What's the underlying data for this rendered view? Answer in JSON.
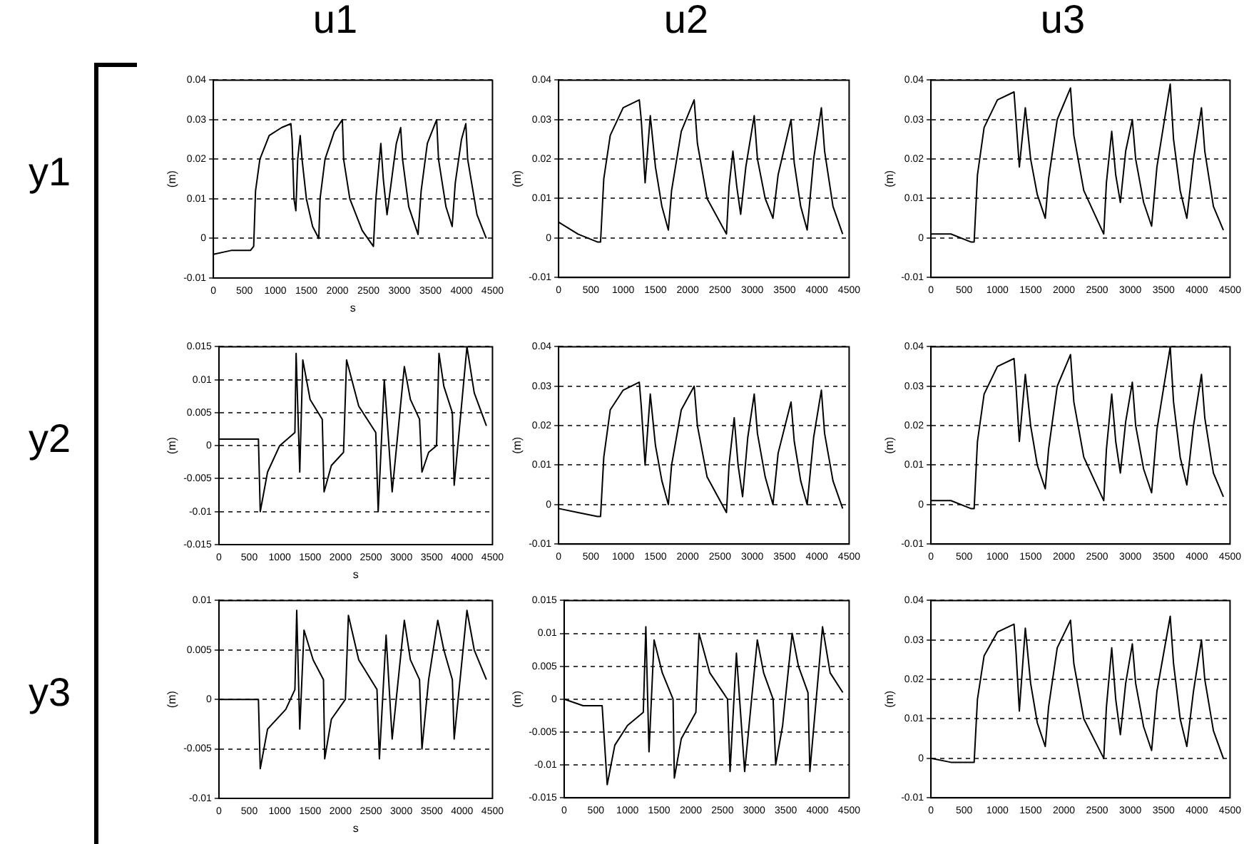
{
  "chart_data": [
    {
      "type": "line",
      "title": "u1",
      "ylabel": "(m)",
      "xlabel": "s",
      "annotations": [
        "y1"
      ],
      "xlim": [
        0,
        4500
      ],
      "xticks": [
        0,
        500,
        1000,
        1500,
        2000,
        2500,
        3000,
        3500,
        4000,
        4500
      ],
      "ylim": [
        -0.01,
        0.04
      ],
      "yticks": [
        -0.01,
        0,
        0.01,
        0.02,
        0.03,
        0.04
      ],
      "grid": "y",
      "line_style": "solid",
      "series": [
        {
          "color": "#000000",
          "x": [
            0,
            300,
            600,
            650,
            680,
            750,
            900,
            1100,
            1250,
            1270,
            1300,
            1330,
            1360,
            1400,
            1430,
            1500,
            1600,
            1700,
            1720,
            1800,
            1950,
            2080,
            2100,
            2200,
            2400,
            2580,
            2620,
            2700,
            2740,
            2800,
            2850,
            2950,
            3020,
            3050,
            3150,
            3300,
            3350,
            3450,
            3600,
            3630,
            3750,
            3850,
            3900,
            4000,
            4070,
            4100,
            4250,
            4400
          ],
          "values": [
            -0.004,
            -0.003,
            -0.003,
            -0.002,
            0.012,
            0.02,
            0.026,
            0.028,
            0.029,
            0.025,
            0.01,
            0.007,
            0.02,
            0.026,
            0.02,
            0.01,
            0.003,
            0,
            0.01,
            0.02,
            0.027,
            0.03,
            0.02,
            0.01,
            0.002,
            -0.002,
            0.01,
            0.024,
            0.015,
            0.006,
            0.012,
            0.024,
            0.028,
            0.02,
            0.008,
            0.001,
            0.012,
            0.024,
            0.03,
            0.02,
            0.008,
            0.003,
            0.014,
            0.025,
            0.029,
            0.02,
            0.006,
            0
          ]
        }
      ]
    },
    {
      "type": "line",
      "title": "u2",
      "ylabel": "(m)",
      "xlim": [
        0,
        4500
      ],
      "xticks": [
        0,
        500,
        1000,
        1500,
        2000,
        2500,
        3000,
        3500,
        4000,
        4500
      ],
      "ylim": [
        -0.01,
        0.04
      ],
      "yticks": [
        -0.01,
        0,
        0.01,
        0.02,
        0.03,
        0.04
      ],
      "grid": "y",
      "line_style": "solid",
      "series": [
        {
          "color": "#000000",
          "x": [
            0,
            300,
            600,
            650,
            700,
            800,
            1000,
            1250,
            1280,
            1340,
            1420,
            1500,
            1600,
            1700,
            1750,
            1900,
            2100,
            2150,
            2300,
            2600,
            2640,
            2700,
            2760,
            2820,
            2900,
            3030,
            3080,
            3200,
            3320,
            3400,
            3600,
            3650,
            3750,
            3850,
            3950,
            4070,
            4120,
            4250,
            4400
          ],
          "values": [
            0.004,
            0.001,
            -0.001,
            -0.001,
            0.015,
            0.026,
            0.033,
            0.035,
            0.03,
            0.014,
            0.031,
            0.018,
            0.008,
            0.002,
            0.012,
            0.027,
            0.035,
            0.024,
            0.01,
            0.001,
            0.013,
            0.022,
            0.013,
            0.006,
            0.018,
            0.031,
            0.02,
            0.01,
            0.005,
            0.016,
            0.03,
            0.019,
            0.008,
            0.002,
            0.02,
            0.033,
            0.022,
            0.008,
            0.001
          ]
        }
      ]
    },
    {
      "type": "line",
      "title": "u3",
      "ylabel": "(m)",
      "xlim": [
        0,
        4500
      ],
      "xticks": [
        0,
        500,
        1000,
        1500,
        2000,
        2500,
        3000,
        3500,
        4000,
        4500
      ],
      "ylim": [
        -0.01,
        0.04
      ],
      "yticks": [
        -0.01,
        0,
        0.01,
        0.02,
        0.03,
        0.04
      ],
      "grid": "y",
      "line_style": "solid",
      "series": [
        {
          "color": "#000000",
          "x": [
            0,
            300,
            600,
            650,
            700,
            800,
            1000,
            1250,
            1280,
            1330,
            1420,
            1500,
            1600,
            1720,
            1770,
            1900,
            2100,
            2150,
            2300,
            2600,
            2640,
            2720,
            2780,
            2850,
            2930,
            3030,
            3080,
            3200,
            3320,
            3400,
            3600,
            3650,
            3750,
            3850,
            3950,
            4070,
            4120,
            4250,
            4400
          ],
          "values": [
            0.001,
            0.001,
            -0.001,
            -0.001,
            0.016,
            0.028,
            0.035,
            0.037,
            0.03,
            0.018,
            0.033,
            0.02,
            0.011,
            0.005,
            0.015,
            0.03,
            0.038,
            0.026,
            0.012,
            0.001,
            0.014,
            0.027,
            0.016,
            0.009,
            0.022,
            0.03,
            0.02,
            0.009,
            0.003,
            0.018,
            0.039,
            0.025,
            0.012,
            0.005,
            0.02,
            0.033,
            0.022,
            0.008,
            0.002
          ]
        }
      ]
    },
    {
      "type": "line",
      "ylabel": "(m)",
      "xlabel": "s",
      "annotations": [
        "y2"
      ],
      "xlim": [
        0,
        4500
      ],
      "xticks": [
        0,
        500,
        1000,
        1500,
        2000,
        2500,
        3000,
        3500,
        4000,
        4500
      ],
      "ylim": [
        -0.015,
        0.015
      ],
      "yticks": [
        -0.015,
        -0.01,
        -0.005,
        0,
        0.005,
        0.01,
        0.015
      ],
      "grid": "y",
      "line_style": "solid",
      "series": [
        {
          "color": "#000000",
          "x": [
            0,
            300,
            650,
            680,
            800,
            1000,
            1250,
            1270,
            1330,
            1380,
            1500,
            1700,
            1730,
            1850,
            2050,
            2100,
            2300,
            2580,
            2620,
            2720,
            2850,
            3050,
            3150,
            3300,
            3340,
            3450,
            3580,
            3620,
            3700,
            3840,
            3870,
            4080,
            4200,
            4400
          ],
          "values": [
            0.001,
            0.001,
            0.001,
            -0.01,
            -0.004,
            0,
            0.002,
            0.014,
            -0.004,
            0.013,
            0.007,
            0.004,
            -0.007,
            -0.003,
            -0.001,
            0.013,
            0.006,
            0.002,
            -0.01,
            0.01,
            -0.007,
            0.012,
            0.007,
            0.004,
            -0.004,
            -0.001,
            0,
            0.014,
            0.009,
            0.005,
            -0.006,
            0.015,
            0.008,
            0.003
          ]
        }
      ]
    },
    {
      "type": "line",
      "ylabel": "(m)",
      "xlim": [
        0,
        4500
      ],
      "xticks": [
        0,
        500,
        1000,
        1500,
        2000,
        2500,
        3000,
        3500,
        4000,
        4500
      ],
      "ylim": [
        -0.01,
        0.04
      ],
      "yticks": [
        -0.01,
        0,
        0.01,
        0.02,
        0.03,
        0.04
      ],
      "grid": "y",
      "line_style": "solid",
      "series": [
        {
          "color": "#000000",
          "x": [
            0,
            300,
            600,
            650,
            700,
            800,
            1000,
            1250,
            1280,
            1340,
            1420,
            1500,
            1600,
            1700,
            1750,
            1900,
            2100,
            2150,
            2300,
            2600,
            2640,
            2720,
            2780,
            2850,
            2930,
            3030,
            3080,
            3200,
            3320,
            3400,
            3600,
            3650,
            3750,
            3850,
            3950,
            4070,
            4120,
            4250,
            4400
          ],
          "values": [
            -0.001,
            -0.002,
            -0.003,
            -0.003,
            0.012,
            0.024,
            0.029,
            0.031,
            0.025,
            0.01,
            0.028,
            0.015,
            0.006,
            0,
            0.01,
            0.024,
            0.03,
            0.02,
            0.007,
            -0.002,
            0.01,
            0.022,
            0.01,
            0.002,
            0.017,
            0.028,
            0.018,
            0.007,
            0,
            0.013,
            0.026,
            0.016,
            0.006,
            0,
            0.017,
            0.029,
            0.018,
            0.006,
            -0.001
          ]
        }
      ]
    },
    {
      "type": "line",
      "ylabel": "(m)",
      "xlim": [
        0,
        4500
      ],
      "xticks": [
        0,
        500,
        1000,
        1500,
        2000,
        2500,
        3000,
        3500,
        4000,
        4500
      ],
      "ylim": [
        -0.01,
        0.04
      ],
      "yticks": [
        -0.01,
        0,
        0.01,
        0.02,
        0.03,
        0.04
      ],
      "grid": "y",
      "line_style": "solid",
      "series": [
        {
          "color": "#000000",
          "x": [
            0,
            300,
            600,
            650,
            700,
            800,
            1000,
            1250,
            1280,
            1330,
            1420,
            1500,
            1600,
            1720,
            1770,
            1900,
            2100,
            2150,
            2300,
            2600,
            2640,
            2720,
            2780,
            2850,
            2930,
            3030,
            3080,
            3200,
            3320,
            3400,
            3600,
            3650,
            3750,
            3850,
            3950,
            4070,
            4120,
            4250,
            4400
          ],
          "values": [
            0.001,
            0.001,
            -0.001,
            -0.001,
            0.016,
            0.028,
            0.035,
            0.037,
            0.03,
            0.016,
            0.033,
            0.02,
            0.01,
            0.004,
            0.014,
            0.03,
            0.038,
            0.026,
            0.012,
            0.001,
            0.014,
            0.028,
            0.016,
            0.008,
            0.021,
            0.031,
            0.02,
            0.009,
            0.003,
            0.019,
            0.04,
            0.026,
            0.012,
            0.005,
            0.02,
            0.033,
            0.022,
            0.008,
            0.002
          ]
        }
      ]
    },
    {
      "type": "line",
      "ylabel": "(m)",
      "xlabel": "s",
      "annotations": [
        "y3"
      ],
      "xlim": [
        0,
        4500
      ],
      "xticks": [
        0,
        500,
        1000,
        1500,
        2000,
        2500,
        3000,
        3500,
        4000,
        4500
      ],
      "ylim": [
        -0.01,
        0.01
      ],
      "yticks": [
        -0.01,
        -0.005,
        0,
        0.005,
        0.01
      ],
      "grid": "y",
      "line_style": "solid",
      "series": [
        {
          "color": "#000000",
          "x": [
            0,
            300,
            650,
            680,
            800,
            1100,
            1250,
            1280,
            1330,
            1400,
            1550,
            1720,
            1740,
            1850,
            2080,
            2130,
            2300,
            2600,
            2640,
            2750,
            2850,
            3050,
            3150,
            3300,
            3340,
            3450,
            3600,
            3700,
            3840,
            3870,
            4080,
            4200,
            4400
          ],
          "values": [
            0,
            0,
            0,
            -0.007,
            -0.003,
            -0.001,
            0.001,
            0.009,
            -0.003,
            0.007,
            0.004,
            0.002,
            -0.006,
            -0.002,
            0,
            0.0085,
            0.004,
            0.001,
            -0.006,
            0.0065,
            -0.004,
            0.008,
            0.004,
            0.002,
            -0.005,
            0.002,
            0.008,
            0.005,
            0.002,
            -0.004,
            0.009,
            0.005,
            0.002
          ]
        }
      ]
    },
    {
      "type": "line",
      "ylabel": "(m)",
      "xlim": [
        0,
        4500
      ],
      "xticks": [
        0,
        500,
        1000,
        1500,
        2000,
        2500,
        3000,
        3500,
        4000,
        4500
      ],
      "ylim": [
        -0.015,
        0.015
      ],
      "yticks": [
        -0.015,
        -0.01,
        -0.005,
        0,
        0.005,
        0.01,
        0.015
      ],
      "grid": "y",
      "line_style": "solid",
      "series": [
        {
          "color": "#000000",
          "x": [
            0,
            300,
            600,
            680,
            800,
            1000,
            1250,
            1290,
            1340,
            1420,
            1550,
            1720,
            1740,
            1850,
            2080,
            2130,
            2300,
            2580,
            2620,
            2720,
            2850,
            3050,
            3150,
            3300,
            3340,
            3450,
            3600,
            3700,
            3850,
            3880,
            4080,
            4200,
            4400
          ],
          "values": [
            0,
            -0.001,
            -0.001,
            -0.013,
            -0.007,
            -0.004,
            -0.002,
            0.011,
            -0.008,
            0.009,
            0.004,
            0,
            -0.012,
            -0.006,
            -0.002,
            0.01,
            0.004,
            0,
            -0.011,
            0.007,
            -0.011,
            0.009,
            0.004,
            0,
            -0.01,
            -0.004,
            0.01,
            0.005,
            0.001,
            -0.011,
            0.011,
            0.004,
            0.001
          ]
        }
      ]
    },
    {
      "type": "line",
      "ylabel": "(m)",
      "xlim": [
        0,
        4500
      ],
      "xticks": [
        0,
        500,
        1000,
        1500,
        2000,
        2500,
        3000,
        3500,
        4000,
        4500
      ],
      "ylim": [
        -0.01,
        0.04
      ],
      "yticks": [
        -0.01,
        0,
        0.01,
        0.02,
        0.03,
        0.04
      ],
      "grid": "y",
      "line_style": "solid",
      "series": [
        {
          "color": "#000000",
          "x": [
            0,
            300,
            600,
            650,
            700,
            800,
            1000,
            1250,
            1280,
            1330,
            1420,
            1500,
            1600,
            1720,
            1770,
            1900,
            2100,
            2150,
            2300,
            2600,
            2640,
            2720,
            2780,
            2850,
            2930,
            3030,
            3080,
            3200,
            3320,
            3400,
            3600,
            3650,
            3750,
            3850,
            3950,
            4070,
            4120,
            4250,
            4400
          ],
          "values": [
            0,
            -0.001,
            -0.001,
            -0.001,
            0.015,
            0.026,
            0.032,
            0.034,
            0.027,
            0.012,
            0.033,
            0.019,
            0.009,
            0.003,
            0.013,
            0.028,
            0.035,
            0.024,
            0.01,
            0,
            0.013,
            0.028,
            0.015,
            0.006,
            0.019,
            0.029,
            0.019,
            0.008,
            0.002,
            0.017,
            0.036,
            0.024,
            0.01,
            0.003,
            0.017,
            0.03,
            0.02,
            0.007,
            0
          ]
        }
      ]
    }
  ]
}
